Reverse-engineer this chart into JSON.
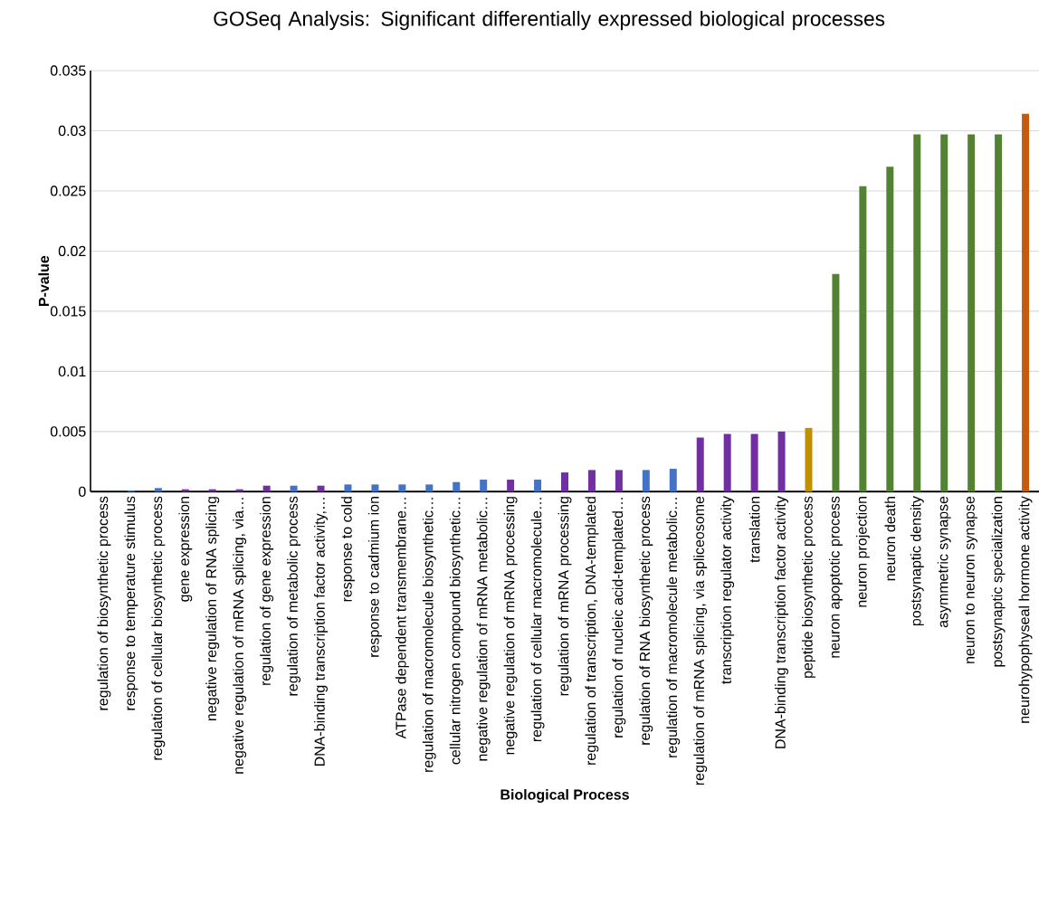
{
  "chart_data": {
    "type": "bar",
    "title": "GOSeq Analysis: Significant differentially expressed biological processes",
    "xlabel": "Biological Process",
    "ylabel": "P-value",
    "categories": [
      "regulation of biosynthetic process",
      "response to temperature stimulus",
      "regulation of cellular biosynthetic process",
      "gene expression",
      "negative regulation of RNA splicing",
      "negative regulation of mRNA splicing, via…",
      "regulation of gene expression",
      "regulation of metabolic process",
      "DNA-binding transcription factor activity,…",
      "response to cold",
      "response to cadmium ion",
      "ATPase dependent transmembrane…",
      "regulation of macromolecule biosynthetic…",
      "cellular nitrogen compound biosynthetic…",
      "negative regulation of mRNA metabolic…",
      "negative regulation of mRNA processing",
      "regulation of cellular macromolecule…",
      "regulation of mRNA processing",
      "regulation of transcription, DNA-templated",
      "regulation of nucleic acid-templated…",
      "regulation of RNA biosynthetic process",
      "regulation of macromolecule metabolic…",
      "regulation of mRNA splicing, via spliceosome",
      "transcription regulator activity",
      "translation",
      "DNA-binding transcription factor activity",
      "peptide biosynthetic process",
      "neuron apoptotic process",
      "neuron projection",
      "neuron death",
      "postsynaptic density",
      "asymmetric synapse",
      "neuron to neuron synapse",
      "postsynaptic specialization",
      "neurohypophyseal hormone activity"
    ],
    "values": [
      null,
      0.0001,
      0.0003,
      0.0002,
      0.0002,
      0.0002,
      0.0005,
      0.0005,
      0.0005,
      0.0006,
      0.0006,
      0.0006,
      0.0006,
      0.0008,
      0.001,
      0.001,
      0.001,
      0.0016,
      0.0018,
      0.0018,
      0.0018,
      0.0019,
      0.0045,
      0.0048,
      0.0048,
      0.005,
      0.0053,
      0.0181,
      0.0254,
      0.027,
      0.0297,
      0.0297,
      0.0297,
      0.0297,
      0.0314
    ],
    "colors": [
      "#4472c4",
      "#4472c4",
      "#4472c4",
      "#7030a0",
      "#7030a0",
      "#7030a0",
      "#7030a0",
      "#4472c4",
      "#7030a0",
      "#4472c4",
      "#4472c4",
      "#4472c4",
      "#4472c4",
      "#4472c4",
      "#4472c4",
      "#7030a0",
      "#4472c4",
      "#7030a0",
      "#7030a0",
      "#7030a0",
      "#4472c4",
      "#4472c4",
      "#7030a0",
      "#7030a0",
      "#7030a0",
      "#7030a0",
      "#bf9000",
      "#548235",
      "#548235",
      "#548235",
      "#548235",
      "#548235",
      "#548235",
      "#548235",
      "#c55a11"
    ],
    "ylim": [
      0,
      0.035
    ],
    "yticks": [
      0,
      0.005,
      0.01,
      0.015,
      0.02,
      0.025,
      0.03,
      0.035
    ],
    "grid": "y"
  }
}
